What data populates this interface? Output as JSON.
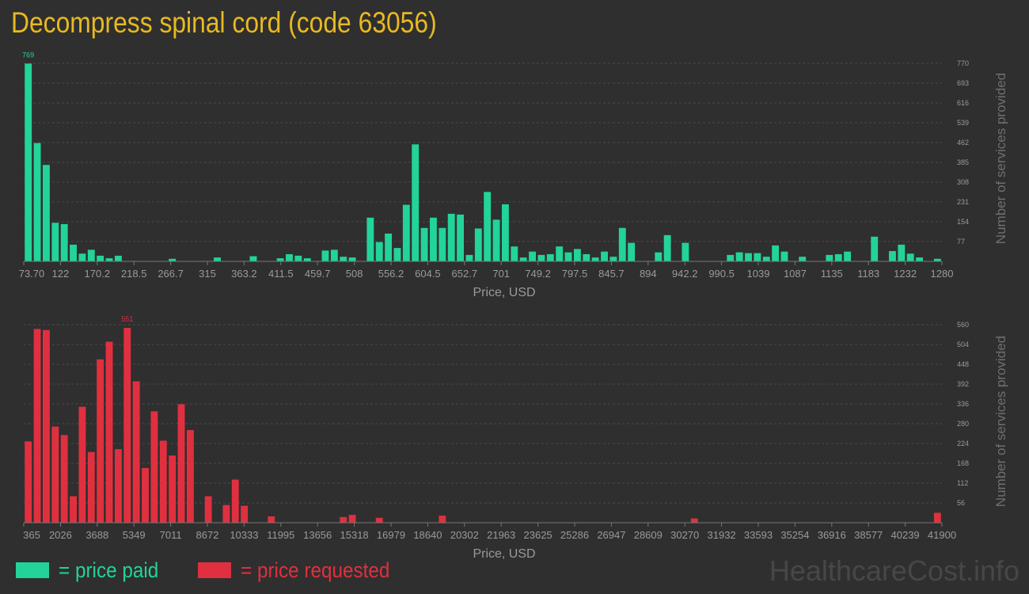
{
  "title": "Decompress spinal cord (code 63056)",
  "watermark": "HealthcareCost.info",
  "legend": {
    "paid": "= price paid",
    "requested": "= price requested"
  },
  "colors": {
    "paid": "#22d39a",
    "requested": "#e0303f",
    "title": "#e8b921",
    "background": "#2f2f2f"
  },
  "chart_data": [
    {
      "type": "bar",
      "name": "paid",
      "xlabel": "Price, USD",
      "ylabel": "Number of services provided",
      "ylim": [
        0,
        770
      ],
      "yticks": [
        77,
        154,
        231,
        308,
        385,
        462,
        539,
        616,
        693,
        770
      ],
      "xticks": [
        "73.70",
        "122",
        "170.2",
        "218.5",
        "266.7",
        "315",
        "363.2",
        "411.5",
        "459.7",
        "508",
        "556.2",
        "604.5",
        "652.7",
        "701",
        "749.2",
        "797.5",
        "845.7",
        "894",
        "942.2",
        "990.5",
        "1039",
        "1087",
        "1135",
        "1183",
        "1232",
        "1280"
      ],
      "peak_label": "769",
      "peak_index": 0,
      "grid": true,
      "values": [
        769,
        460,
        375,
        150,
        145,
        65,
        30,
        45,
        22,
        12,
        22,
        0,
        0,
        0,
        0,
        0,
        10,
        0,
        0,
        0,
        0,
        15,
        0,
        0,
        0,
        20,
        0,
        0,
        12,
        28,
        22,
        12,
        0,
        42,
        45,
        18,
        15,
        0,
        170,
        75,
        108,
        52,
        220,
        455,
        130,
        170,
        130,
        185,
        182,
        25,
        128,
        270,
        162,
        222,
        58,
        15,
        38,
        25,
        28,
        58,
        35,
        48,
        28,
        15,
        38,
        18,
        130,
        72,
        0,
        0,
        35,
        102,
        0,
        72,
        0,
        0,
        0,
        0,
        25,
        35,
        32,
        32,
        18,
        62,
        38,
        0,
        18,
        0,
        0,
        25,
        28,
        38,
        0,
        0,
        96,
        0,
        40,
        65,
        30,
        15,
        0,
        10
      ]
    },
    {
      "type": "bar",
      "name": "requested",
      "xlabel": "Price, USD",
      "ylabel": "Number of services provided",
      "ylim": [
        0,
        560
      ],
      "yticks": [
        56,
        112,
        168,
        224,
        280,
        336,
        392,
        448,
        504,
        560
      ],
      "xticks": [
        "365",
        "2026",
        "3688",
        "5349",
        "7011",
        "8672",
        "10333",
        "11995",
        "13656",
        "15318",
        "16979",
        "18640",
        "20302",
        "21963",
        "23625",
        "25286",
        "26947",
        "28609",
        "30270",
        "31932",
        "33593",
        "35254",
        "36916",
        "38577",
        "40239",
        "41900"
      ],
      "peak_label": "551",
      "peak_index": 11,
      "grid": true,
      "values": [
        230,
        548,
        545,
        272,
        248,
        75,
        328,
        200,
        462,
        512,
        208,
        551,
        400,
        155,
        315,
        232,
        190,
        335,
        262,
        0,
        75,
        0,
        50,
        122,
        48,
        0,
        0,
        18,
        0,
        0,
        0,
        0,
        0,
        0,
        0,
        16,
        22,
        0,
        0,
        14,
        0,
        0,
        0,
        0,
        0,
        0,
        20,
        0,
        0,
        0,
        0,
        0,
        0,
        0,
        0,
        0,
        0,
        0,
        0,
        0,
        0,
        0,
        0,
        0,
        0,
        0,
        0,
        0,
        0,
        0,
        0,
        0,
        0,
        0,
        12,
        0,
        0,
        0,
        0,
        0,
        0,
        0,
        0,
        0,
        0,
        0,
        0,
        0,
        0,
        0,
        0,
        0,
        0,
        0,
        0,
        0,
        0,
        0,
        0,
        0,
        0,
        28
      ]
    }
  ]
}
